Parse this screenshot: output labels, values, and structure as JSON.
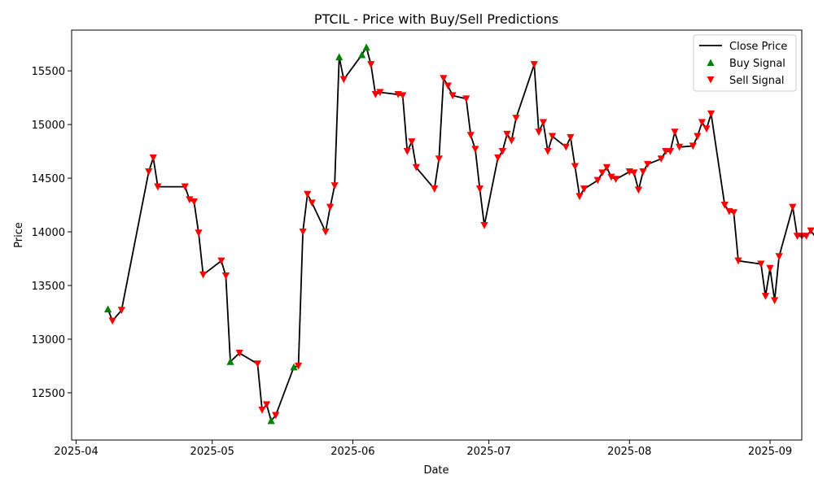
{
  "chart_data": {
    "type": "line",
    "title": "PTCIL - Price with Buy/Sell Predictions",
    "xlabel": "Date",
    "ylabel": "Price",
    "xlim": [
      "2025-03-31",
      "2025-09-08"
    ],
    "ylim": [
      12060,
      15880
    ],
    "x_ticks": [
      "2025-04-01",
      "2025-05-01",
      "2025-06-01",
      "2025-07-01",
      "2025-08-01",
      "2025-09-01"
    ],
    "x_tick_labels": [
      "2025-04",
      "2025-05",
      "2025-06",
      "2025-07",
      "2025-08",
      "2025-09"
    ],
    "y_ticks": [
      12500,
      13000,
      13500,
      14000,
      14500,
      15000,
      15500
    ],
    "y_tick_labels": [
      "12500",
      "13000",
      "13500",
      "14000",
      "14500",
      "15000",
      "15500"
    ],
    "grid": false,
    "legend_position": "upper right",
    "legend": [
      {
        "label": "Close Price",
        "kind": "line",
        "color": "#000000"
      },
      {
        "label": "Buy Signal",
        "kind": "marker-up",
        "color": "#008000"
      },
      {
        "label": "Sell Signal",
        "kind": "marker-down",
        "color": "#ff0000"
      }
    ],
    "series": [
      {
        "name": "Close Price",
        "color": "#000000",
        "points": [
          [
            "2025-04-08",
            13280,
            ""
          ],
          [
            "2025-04-09",
            13170,
            "sell"
          ],
          [
            "2025-04-11",
            13270,
            "sell"
          ],
          [
            "2025-04-17",
            14560,
            "sell"
          ],
          [
            "2025-04-18",
            14690,
            "sell"
          ],
          [
            "2025-04-19",
            14420,
            "sell"
          ],
          [
            "2025-04-25",
            14420,
            "sell"
          ],
          [
            "2025-04-26",
            14300,
            "sell"
          ],
          [
            "2025-04-27",
            14280,
            "sell"
          ],
          [
            "2025-04-28",
            13990,
            "sell"
          ],
          [
            "2025-04-29",
            13600,
            "sell"
          ],
          [
            "2025-05-03",
            13730,
            "sell"
          ],
          [
            "2025-05-04",
            13590,
            "sell"
          ],
          [
            "2025-05-05",
            12790,
            ""
          ],
          [
            "2025-05-07",
            12870,
            "sell"
          ],
          [
            "2025-05-11",
            12770,
            "sell"
          ],
          [
            "2025-05-12",
            12340,
            "sell"
          ],
          [
            "2025-05-13",
            12390,
            "sell"
          ],
          [
            "2025-05-14",
            12240,
            ""
          ],
          [
            "2025-05-15",
            12290,
            "sell"
          ],
          [
            "2025-05-19",
            12740,
            ""
          ],
          [
            "2025-05-20",
            12750,
            "sell"
          ],
          [
            "2025-05-21",
            14000,
            "sell"
          ],
          [
            "2025-05-22",
            14350,
            "sell"
          ],
          [
            "2025-05-23",
            14270,
            "sell"
          ],
          [
            "2025-05-26",
            14000,
            "sell"
          ],
          [
            "2025-05-27",
            14230,
            "sell"
          ],
          [
            "2025-05-28",
            14430,
            "sell"
          ],
          [
            "2025-05-29",
            15630,
            ""
          ],
          [
            "2025-05-30",
            15420,
            "sell"
          ],
          [
            "2025-06-03",
            15650,
            ""
          ],
          [
            "2025-06-04",
            15720,
            ""
          ],
          [
            "2025-06-05",
            15560,
            "sell"
          ],
          [
            "2025-06-06",
            15280,
            "sell"
          ],
          [
            "2025-06-07",
            15300,
            "sell"
          ],
          [
            "2025-06-11",
            15280,
            "sell"
          ],
          [
            "2025-06-12",
            15270,
            "sell"
          ],
          [
            "2025-06-13",
            14750,
            "sell"
          ],
          [
            "2025-06-14",
            14840,
            "sell"
          ],
          [
            "2025-06-15",
            14600,
            "sell"
          ],
          [
            "2025-06-19",
            14400,
            "sell"
          ],
          [
            "2025-06-20",
            14680,
            "sell"
          ],
          [
            "2025-06-21",
            15430,
            "sell"
          ],
          [
            "2025-06-22",
            15360,
            "sell"
          ],
          [
            "2025-06-23",
            15270,
            "sell"
          ],
          [
            "2025-06-26",
            15240,
            "sell"
          ],
          [
            "2025-06-27",
            14900,
            "sell"
          ],
          [
            "2025-06-28",
            14770,
            "sell"
          ],
          [
            "2025-06-29",
            14400,
            "sell"
          ],
          [
            "2025-06-30",
            14060,
            "sell"
          ],
          [
            "2025-07-03",
            14690,
            "sell"
          ],
          [
            "2025-07-04",
            14750,
            "sell"
          ],
          [
            "2025-07-05",
            14910,
            "sell"
          ],
          [
            "2025-07-06",
            14850,
            "sell"
          ],
          [
            "2025-07-07",
            15060,
            "sell"
          ],
          [
            "2025-07-11",
            15560,
            "sell"
          ],
          [
            "2025-07-12",
            14930,
            "sell"
          ],
          [
            "2025-07-13",
            15020,
            "sell"
          ],
          [
            "2025-07-14",
            14750,
            "sell"
          ],
          [
            "2025-07-15",
            14890,
            "sell"
          ],
          [
            "2025-07-18",
            14790,
            "sell"
          ],
          [
            "2025-07-19",
            14880,
            "sell"
          ],
          [
            "2025-07-20",
            14610,
            "sell"
          ],
          [
            "2025-07-21",
            14330,
            "sell"
          ],
          [
            "2025-07-22",
            14400,
            "sell"
          ],
          [
            "2025-07-25",
            14480,
            "sell"
          ],
          [
            "2025-07-26",
            14550,
            "sell"
          ],
          [
            "2025-07-27",
            14600,
            "sell"
          ],
          [
            "2025-07-28",
            14510,
            "sell"
          ],
          [
            "2025-07-29",
            14490,
            "sell"
          ],
          [
            "2025-08-01",
            14560,
            "sell"
          ],
          [
            "2025-08-02",
            14550,
            "sell"
          ],
          [
            "2025-08-03",
            14390,
            "sell"
          ],
          [
            "2025-08-04",
            14560,
            "sell"
          ],
          [
            "2025-08-05",
            14630,
            "sell"
          ],
          [
            "2025-08-08",
            14680,
            "sell"
          ],
          [
            "2025-08-09",
            14750,
            "sell"
          ],
          [
            "2025-08-10",
            14750,
            "sell"
          ],
          [
            "2025-08-11",
            14930,
            "sell"
          ],
          [
            "2025-08-12",
            14790,
            "sell"
          ],
          [
            "2025-08-15",
            14800,
            "sell"
          ],
          [
            "2025-08-16",
            14890,
            "sell"
          ],
          [
            "2025-08-17",
            15020,
            "sell"
          ],
          [
            "2025-08-18",
            14960,
            "sell"
          ],
          [
            "2025-08-19",
            15100,
            "sell"
          ],
          [
            "2025-08-22",
            14250,
            "sell"
          ],
          [
            "2025-08-23",
            14190,
            "sell"
          ],
          [
            "2025-08-24",
            14180,
            "sell"
          ],
          [
            "2025-08-25",
            13730,
            "sell"
          ],
          [
            "2025-08-30",
            13700,
            "sell"
          ],
          [
            "2025-08-31",
            13400,
            "sell"
          ],
          [
            "2025-09-01",
            13660,
            "sell"
          ],
          [
            "2025-09-02",
            13360,
            "sell"
          ],
          [
            "2025-09-03",
            13770,
            "sell"
          ],
          [
            "2025-09-06",
            14230,
            "sell"
          ],
          [
            "2025-09-07",
            13960,
            "sell"
          ],
          [
            "2025-09-08",
            13960,
            "sell"
          ],
          [
            "2025-09-09",
            13960,
            "sell"
          ],
          [
            "2025-09-10",
            14010,
            "sell"
          ],
          [
            "2025-09-13",
            13840,
            "sell"
          ],
          [
            "2025-09-14",
            13810,
            "sell"
          ]
        ]
      },
      {
        "name": "Buy Signal",
        "color": "#008000",
        "marker": "triangle-up",
        "points": [
          [
            "2025-04-08",
            13280
          ],
          [
            "2025-05-05",
            12790
          ],
          [
            "2025-05-14",
            12240
          ],
          [
            "2025-05-19",
            12740
          ],
          [
            "2025-05-29",
            15630
          ],
          [
            "2025-06-03",
            15650
          ],
          [
            "2025-06-04",
            15720
          ]
        ]
      },
      {
        "name": "Sell Signal",
        "color": "#ff0000",
        "marker": "triangle-down"
      }
    ]
  }
}
